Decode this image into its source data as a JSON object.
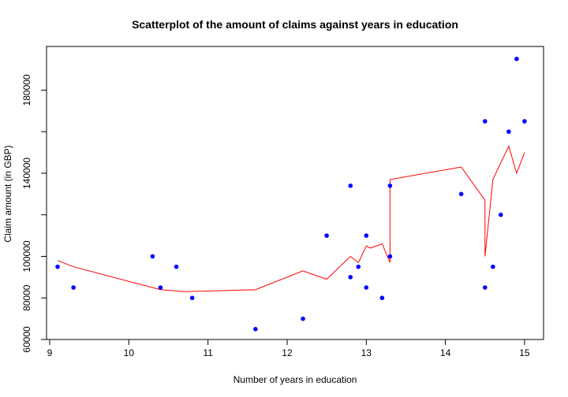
{
  "chart_data": {
    "type": "scatter",
    "title": "Scatterplot of the amount of claims against years in education",
    "xlabel": "Number of years in education",
    "ylabel": "Claim amount (in GBP)",
    "xlim": [
      8.96,
      15.24
    ],
    "ylim": [
      60000,
      201000
    ],
    "x_ticks": [
      9,
      10,
      11,
      12,
      13,
      14,
      15
    ],
    "y_ticks": [
      60000,
      80000,
      100000,
      120000,
      140000,
      160000,
      180000
    ],
    "y_tick_labels": [
      "60000",
      "80000",
      "100000",
      "",
      "140000",
      "",
      "180000"
    ],
    "grid": false,
    "series": [
      {
        "kind": "points",
        "color": "#0000ff",
        "points": [
          [
            9.1,
            95000
          ],
          [
            9.3,
            85000
          ],
          [
            10.3,
            100000
          ],
          [
            10.4,
            85000
          ],
          [
            10.6,
            95000
          ],
          [
            10.8,
            80000
          ],
          [
            11.6,
            65000
          ],
          [
            12.2,
            70000
          ],
          [
            12.5,
            110000
          ],
          [
            12.8,
            90000
          ],
          [
            12.8,
            134000
          ],
          [
            12.9,
            95000
          ],
          [
            13.0,
            85000
          ],
          [
            13.0,
            110000
          ],
          [
            13.2,
            80000
          ],
          [
            13.3,
            100000
          ],
          [
            13.3,
            134000
          ],
          [
            14.2,
            130000
          ],
          [
            14.5,
            85000
          ],
          [
            14.5,
            165000
          ],
          [
            14.6,
            95000
          ],
          [
            14.7,
            120000
          ],
          [
            14.8,
            160000
          ],
          [
            14.9,
            195000
          ],
          [
            15.0,
            165000
          ]
        ]
      },
      {
        "kind": "line",
        "color": "#ff0000",
        "points": [
          [
            9.1,
            98000
          ],
          [
            9.3,
            95000
          ],
          [
            10.4,
            84000
          ],
          [
            10.7,
            83000
          ],
          [
            11.6,
            84000
          ],
          [
            12.2,
            93000
          ],
          [
            12.5,
            89000
          ],
          [
            12.8,
            100000
          ],
          [
            12.9,
            97000
          ],
          [
            13.0,
            105000
          ],
          [
            13.05,
            104000
          ],
          [
            13.2,
            106000
          ],
          [
            13.3,
            97000
          ],
          [
            13.3,
            137000
          ],
          [
            14.2,
            143000
          ],
          [
            14.5,
            127000
          ],
          [
            14.5,
            100000
          ],
          [
            14.6,
            137000
          ],
          [
            14.7,
            145000
          ],
          [
            14.8,
            153000
          ],
          [
            14.9,
            140000
          ],
          [
            15.0,
            150000
          ]
        ]
      }
    ]
  }
}
